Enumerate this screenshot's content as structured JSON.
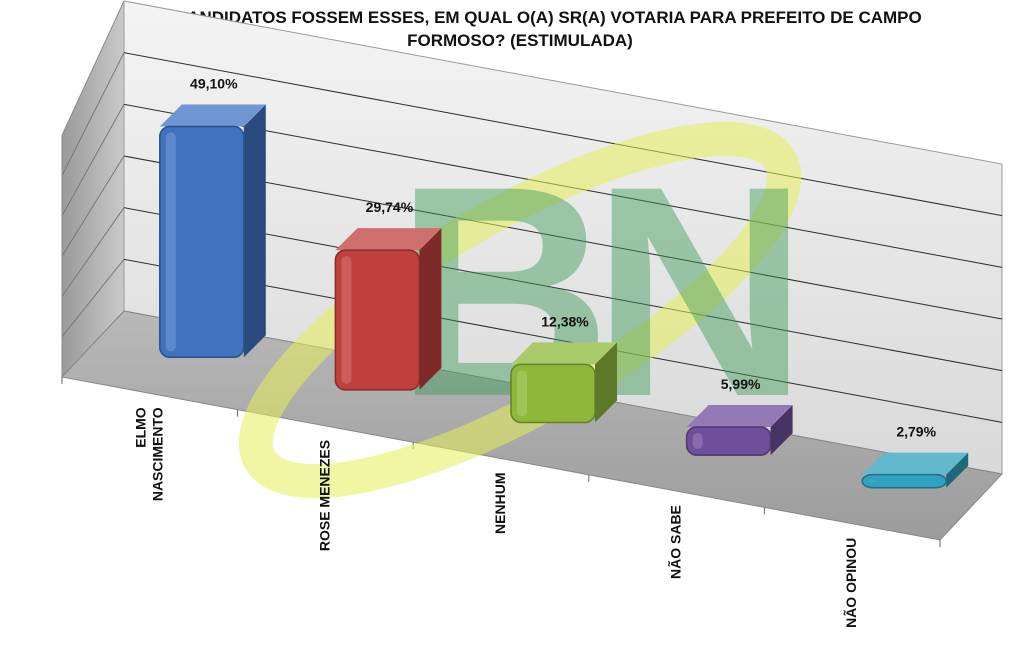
{
  "chart_data": {
    "type": "bar",
    "title_line1": "SE OS CANDIDATOS FOSSEM ESSES, EM QUAL O(A) SR(A) VOTARIA PARA PREFEITO DE CAMPO",
    "title_line2": "FORMOSO? (ESTIMULADA)",
    "categories": [
      [
        "ELMO",
        "NASCIMENTO"
      ],
      [
        "ROSE MENEZES"
      ],
      [
        "NENHUM"
      ],
      [
        "NÃO SABE"
      ],
      [
        "NÃO OPINOU"
      ]
    ],
    "values": [
      49.1,
      29.74,
      12.38,
      5.99,
      2.79
    ],
    "value_labels": [
      "49,10%",
      "29,74%",
      "12,38%",
      "5,99%",
      "2,79%"
    ],
    "colors": [
      "#3f73c0",
      "#c0403d",
      "#8fb83a",
      "#6f4e9c",
      "#2fa0bd"
    ],
    "grid": true,
    "three_d": true
  },
  "watermark": {
    "text": "BN",
    "green": "#3d9a58",
    "yellow": "#e6ef5a"
  }
}
